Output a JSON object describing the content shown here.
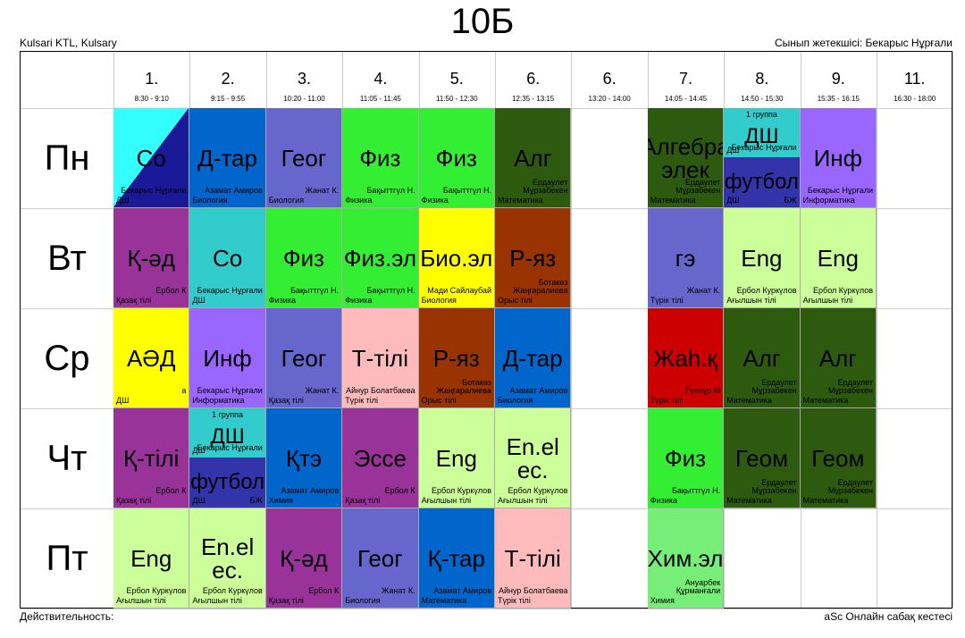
{
  "title": "10Б",
  "school": "Kulsari KTL, Kulsary",
  "class_teacher": "Сынып жетекшісі: Бекарыс Нұрғали",
  "footer_left": "Действительность:",
  "footer_right": "aSc Онлайн сабақ кестесі",
  "periods": [
    {
      "num": "1.",
      "time": "8:30 - 9:10"
    },
    {
      "num": "2.",
      "time": "9:15 - 9:55"
    },
    {
      "num": "3.",
      "time": "10:20 - 11:00"
    },
    {
      "num": "4.",
      "time": "11:05 - 11:45"
    },
    {
      "num": "5.",
      "time": "11:50 - 12:30"
    },
    {
      "num": "6.",
      "time": "12:35 - 13:15"
    },
    {
      "num": "6.",
      "time": "13:20 - 14:00"
    },
    {
      "num": "7.",
      "time": "14:05 - 14:45"
    },
    {
      "num": "8.",
      "time": "14:50 - 15:30"
    },
    {
      "num": "9.",
      "time": "15:35 - 16:15"
    },
    {
      "num": "11.",
      "time": "16:30 - 18:00"
    }
  ],
  "days": [
    "Пн",
    "Вт",
    "Ср",
    "Чт",
    "Пт"
  ],
  "lessons": [
    {
      "d": 0,
      "p": 0,
      "subj": "Со",
      "teacher": "Бекарыс Нұрғали",
      "room": "ДШ",
      "color": "#33ffff",
      "diag": "#1a1a99"
    },
    {
      "d": 0,
      "p": 1,
      "subj": "Д-тар",
      "teacher": "Азамат Амиров",
      "room": "Биология",
      "color": "#0066cc"
    },
    {
      "d": 0,
      "p": 2,
      "subj": "Геог",
      "teacher": "Жанат К.",
      "room": "Биология",
      "color": "#6666cc"
    },
    {
      "d": 0,
      "p": 3,
      "subj": "Физ",
      "teacher": "Бақыттгүл Н.",
      "room": "Физика",
      "color": "#33ee33"
    },
    {
      "d": 0,
      "p": 4,
      "subj": "Физ",
      "teacher": "Бақыттгүл Н.",
      "room": "Физика",
      "color": "#33ee33"
    },
    {
      "d": 0,
      "p": 5,
      "subj": "Алг",
      "teacher": "Ердаулет Мұрзабекен",
      "room": "Математика",
      "color": "#2d5a0f"
    },
    {
      "d": 0,
      "p": 7,
      "subj": "Алгебра элек",
      "teacher": "Ердаулет Мұрзабекен",
      "room": "Математика",
      "color": "#2d5a0f"
    },
    {
      "d": 0,
      "p": 9,
      "subj": "Инф",
      "teacher": "Бекарыс Нұрғали",
      "room": "Информатика",
      "color": "#9966ff"
    },
    {
      "d": 1,
      "p": 0,
      "subj": "Қ-әд",
      "teacher": "Ербол К",
      "room": "Қазақ тілі",
      "color": "#993399"
    },
    {
      "d": 1,
      "p": 1,
      "subj": "Со",
      "teacher": "Бекарыс Нұрғали",
      "room": "ДШ",
      "color": "#33cccc"
    },
    {
      "d": 1,
      "p": 2,
      "subj": "Физ",
      "teacher": "Бақыттгүл Н.",
      "room": "Физика",
      "color": "#33ee33"
    },
    {
      "d": 1,
      "p": 3,
      "subj": "Физ.эл",
      "teacher": "Бақыттгүл Н.",
      "room": "Физика",
      "color": "#33ee33"
    },
    {
      "d": 1,
      "p": 4,
      "subj": "Био.эл",
      "teacher": "Мади Сайлаубай",
      "room": "Биология",
      "color": "#ffff00"
    },
    {
      "d": 1,
      "p": 5,
      "subj": "Р-яз",
      "teacher": "Ботакөз Жаңгаралиева",
      "room": "Орыс тілі",
      "color": "#993300"
    },
    {
      "d": 1,
      "p": 7,
      "subj": "гэ",
      "teacher": "Жанат К.",
      "room": "Түрік тілі",
      "color": "#6666cc"
    },
    {
      "d": 1,
      "p": 8,
      "subj": "Eng",
      "teacher": "Ербол Куркүлов",
      "room": "Ағылшын тілі",
      "color": "#ccff99"
    },
    {
      "d": 1,
      "p": 9,
      "subj": "Eng",
      "teacher": "Ербол Куркүлов",
      "room": "Ағылшын тілі",
      "color": "#ccff99"
    },
    {
      "d": 2,
      "p": 0,
      "subj": "АӘД",
      "teacher": "а",
      "room": "ДШ",
      "color": "#ffff00"
    },
    {
      "d": 2,
      "p": 1,
      "subj": "Инф",
      "teacher": "Бекарыс Нұрғали",
      "room": "Информатика",
      "color": "#9966ff"
    },
    {
      "d": 2,
      "p": 2,
      "subj": "Геог",
      "teacher": "Жанат К.",
      "room": "Қазақ тілі",
      "color": "#6666cc"
    },
    {
      "d": 2,
      "p": 3,
      "subj": "Т-тілі",
      "teacher": "Айнур Болатбаева",
      "room": "Түрік тілі",
      "color": "#ffbbbb"
    },
    {
      "d": 2,
      "p": 4,
      "subj": "Р-яз",
      "teacher": "Ботакөз Жаңгаралиева",
      "room": "Орыс тілі",
      "color": "#993300"
    },
    {
      "d": 2,
      "p": 5,
      "subj": "Д-тар",
      "teacher": "Азамат Амиров",
      "room": "Биология",
      "color": "#0066cc"
    },
    {
      "d": 2,
      "p": 7,
      "subj": "Жаһ.қ",
      "teacher": "Гүлнұр М",
      "room": "Түрік тілі",
      "color": "#cc0000"
    },
    {
      "d": 2,
      "p": 8,
      "subj": "Алг",
      "teacher": "Ердаулет Мұрзабекен",
      "room": "Математика",
      "color": "#2d5a0f"
    },
    {
      "d": 2,
      "p": 9,
      "subj": "Алг",
      "teacher": "Ердаулет Мұрзабекен",
      "room": "Математика",
      "color": "#2d5a0f"
    },
    {
      "d": 3,
      "p": 0,
      "subj": "Қ-тілі",
      "teacher": "Ербол К",
      "room": "Қазақ тілі",
      "color": "#993399"
    },
    {
      "d": 3,
      "p": 2,
      "subj": "Қтэ",
      "teacher": "Азамат Амиров",
      "room": "Химия",
      "color": "#0066cc"
    },
    {
      "d": 3,
      "p": 3,
      "subj": "Эссе",
      "teacher": "Ербол К",
      "room": "Қазақ тілі",
      "color": "#993399"
    },
    {
      "d": 3,
      "p": 4,
      "subj": "Eng",
      "teacher": "Ербол Куркүлов",
      "room": "Ағылшын тілі",
      "color": "#ccff99"
    },
    {
      "d": 3,
      "p": 5,
      "subj": "En.el ec.",
      "teacher": "Ербол Куркүлов",
      "room": "Ағылшын тілі",
      "color": "#ccff99"
    },
    {
      "d": 3,
      "p": 7,
      "subj": "Физ",
      "teacher": "Бақыттгүл Н.",
      "room": "Физика",
      "color": "#33ee33"
    },
    {
      "d": 3,
      "p": 8,
      "subj": "Геом",
      "teacher": "Ердаулет Мұрзабекен",
      "room": "Математика",
      "color": "#2d5a0f"
    },
    {
      "d": 3,
      "p": 9,
      "subj": "Геом",
      "teacher": "Ердаулет Мұрзабекен",
      "room": "Математика",
      "color": "#2d5a0f"
    },
    {
      "d": 4,
      "p": 0,
      "subj": "Eng",
      "teacher": "Ербол Куркүлов",
      "room": "Ағылшын тілі",
      "color": "#ccff99"
    },
    {
      "d": 4,
      "p": 1,
      "subj": "En.el ec.",
      "teacher": "Ербол Куркүлов",
      "room": "Ағылшын тілі",
      "color": "#ccff99"
    },
    {
      "d": 4,
      "p": 2,
      "subj": "Қ-әд",
      "teacher": "Ербол К",
      "room": "Қазақ тілі",
      "color": "#993399"
    },
    {
      "d": 4,
      "p": 3,
      "subj": "Геог",
      "teacher": "Жанат К.",
      "room": "Биология",
      "color": "#6666cc"
    },
    {
      "d": 4,
      "p": 4,
      "subj": "Қ-тар",
      "teacher": "Азамат Амиров",
      "room": "Математика",
      "color": "#0066cc"
    },
    {
      "d": 4,
      "p": 5,
      "subj": "Т-тілі",
      "teacher": "Айнур Болатбаева",
      "room": "Түрік тілі",
      "color": "#ffbbbb"
    },
    {
      "d": 4,
      "p": 7,
      "subj": "Хим.эл",
      "teacher": "Ануарбек Құрманғали",
      "room": "Химия",
      "color": "#77ee77"
    }
  ],
  "split_lessons": [
    {
      "d": 0,
      "p": 8,
      "group": "1 группа",
      "top_subj": "ДШ",
      "top_teacher": "Бекарыс Нұрғали",
      "top_room": "ДШ",
      "bot_subj": "футбол",
      "bot_teacher": "БЖ",
      "bot_room": "ДШ"
    },
    {
      "d": 3,
      "p": 1,
      "group": "1 группа",
      "top_subj": "ДШ",
      "top_teacher": "Бекарыс Нұрғали",
      "top_room": "ДШ",
      "bot_subj": "футбол",
      "bot_teacher": "БЖ",
      "bot_room": "ДШ"
    }
  ]
}
